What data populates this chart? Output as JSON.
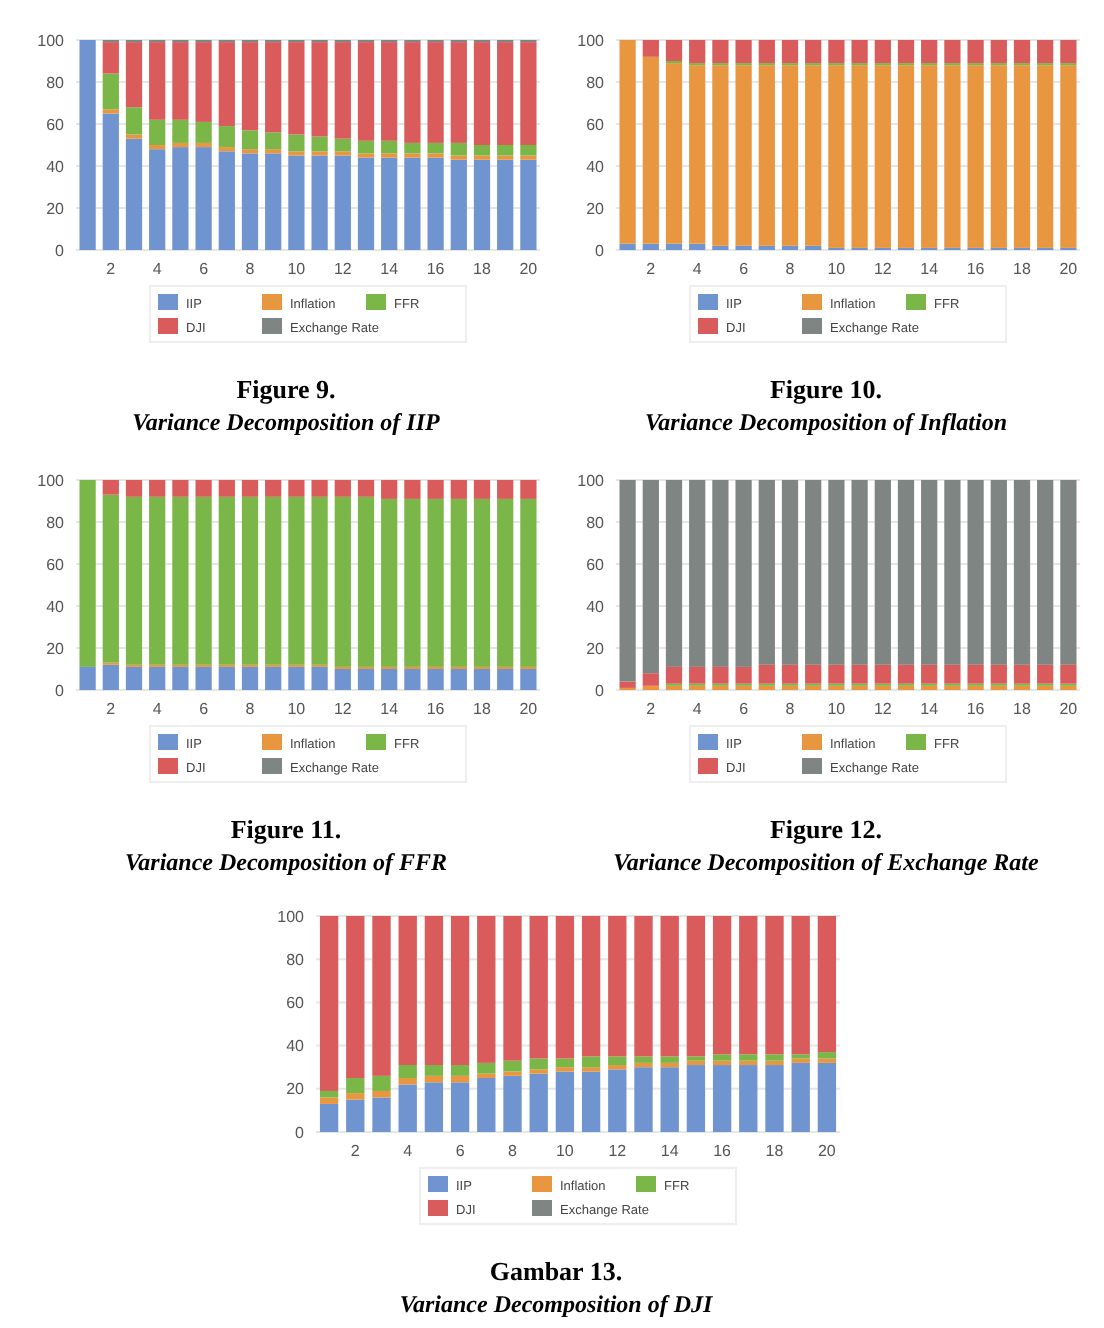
{
  "chart_data": [
    {
      "type": "bar",
      "stacked": true,
      "title": "Figure 9.",
      "subtitle": "Variance Decomposition of IIP",
      "categories": [
        null,
        "2",
        null,
        "4",
        null,
        "6",
        null,
        "8",
        null,
        "10",
        null,
        "12",
        null,
        "14",
        null,
        "16",
        null,
        "18",
        null,
        "20"
      ],
      "ylim": [
        0,
        100
      ],
      "yticks": [
        0,
        20,
        40,
        60,
        80,
        100
      ],
      "grid": "y",
      "legend": "bottom",
      "series": [
        {
          "name": "IIP",
          "color": "#6f94d0",
          "values": [
            100,
            65,
            53,
            48,
            49,
            49,
            47,
            46,
            46,
            45,
            45,
            45,
            44,
            44,
            44,
            44,
            43,
            43,
            43,
            43
          ]
        },
        {
          "name": "Inflation",
          "color": "#e8963f",
          "values": [
            0,
            2,
            2,
            2,
            2,
            2,
            2,
            2,
            2,
            2,
            2,
            2,
            2,
            2,
            2,
            2,
            2,
            2,
            2,
            2
          ]
        },
        {
          "name": "FFR",
          "color": "#7ab648",
          "values": [
            0,
            17,
            13,
            12,
            11,
            10,
            10,
            9,
            8,
            8,
            7,
            6,
            6,
            6,
            5,
            5,
            6,
            5,
            5,
            5
          ]
        },
        {
          "name": "DJI",
          "color": "#d95b5b",
          "values": [
            0,
            15,
            31,
            37,
            37,
            38,
            40,
            42,
            43,
            44,
            45,
            46,
            47,
            47,
            48,
            48,
            48,
            49,
            49,
            49
          ]
        },
        {
          "name": "Exchange Rate",
          "color": "#7f8582",
          "values": [
            0,
            1,
            1,
            1,
            1,
            1,
            1,
            1,
            1,
            1,
            1,
            1,
            1,
            1,
            1,
            1,
            1,
            1,
            1,
            1
          ]
        }
      ]
    },
    {
      "type": "bar",
      "stacked": true,
      "title": "Figure 10.",
      "subtitle": "Variance Decomposition of Inflation",
      "categories": [
        null,
        "2",
        null,
        "4",
        null,
        "6",
        null,
        "8",
        null,
        "10",
        null,
        "12",
        null,
        "14",
        null,
        "16",
        null,
        "18",
        null,
        "20"
      ],
      "ylim": [
        0,
        100
      ],
      "yticks": [
        0,
        20,
        40,
        60,
        80,
        100
      ],
      "grid": "y",
      "legend": "bottom",
      "series": [
        {
          "name": "IIP",
          "color": "#6f94d0",
          "values": [
            3,
            3,
            3,
            3,
            2,
            2,
            2,
            2,
            2,
            1,
            1,
            1,
            1,
            1,
            1,
            1,
            1,
            1,
            1,
            1
          ]
        },
        {
          "name": "Inflation",
          "color": "#e8963f",
          "values": [
            97,
            89,
            86,
            85,
            86,
            86,
            86,
            86,
            86,
            87,
            87,
            87,
            87,
            87,
            87,
            87,
            87,
            87,
            87,
            87
          ]
        },
        {
          "name": "FFR",
          "color": "#7ab648",
          "values": [
            0,
            0,
            1,
            1,
            1,
            1,
            1,
            1,
            1,
            1,
            1,
            1,
            1,
            1,
            1,
            1,
            1,
            1,
            1,
            1
          ]
        },
        {
          "name": "DJI",
          "color": "#d95b5b",
          "values": [
            0,
            8,
            10,
            11,
            11,
            11,
            11,
            11,
            11,
            11,
            11,
            11,
            11,
            11,
            11,
            11,
            11,
            11,
            11,
            11
          ]
        },
        {
          "name": "Exchange Rate",
          "color": "#7f8582",
          "values": [
            0,
            0,
            0,
            0,
            0,
            0,
            0,
            0,
            0,
            0,
            0,
            0,
            0,
            0,
            0,
            0,
            0,
            0,
            0,
            0
          ]
        }
      ]
    },
    {
      "type": "bar",
      "stacked": true,
      "title": "Figure 11.",
      "subtitle": "Variance Decomposition of FFR",
      "categories": [
        null,
        "2",
        null,
        "4",
        null,
        "6",
        null,
        "8",
        null,
        "10",
        null,
        "12",
        null,
        "14",
        null,
        "16",
        null,
        "18",
        null,
        "20"
      ],
      "ylim": [
        0,
        100
      ],
      "yticks": [
        0,
        20,
        40,
        60,
        80,
        100
      ],
      "grid": "y",
      "legend": "bottom",
      "series": [
        {
          "name": "IIP",
          "color": "#6f94d0",
          "values": [
            11,
            12,
            11,
            11,
            11,
            11,
            11,
            11,
            11,
            11,
            11,
            10,
            10,
            10,
            10,
            10,
            10,
            10,
            10,
            10
          ]
        },
        {
          "name": "Inflation",
          "color": "#e8963f",
          "values": [
            0,
            1,
            1,
            1,
            1,
            1,
            1,
            1,
            1,
            1,
            1,
            1,
            1,
            1,
            1,
            1,
            1,
            1,
            1,
            1
          ]
        },
        {
          "name": "FFR",
          "color": "#7ab648",
          "values": [
            89,
            80,
            80,
            80,
            80,
            80,
            80,
            80,
            80,
            80,
            80,
            81,
            81,
            80,
            80,
            80,
            80,
            80,
            80,
            80
          ]
        },
        {
          "name": "DJI",
          "color": "#d95b5b",
          "values": [
            0,
            7,
            8,
            8,
            8,
            8,
            8,
            8,
            8,
            8,
            8,
            8,
            8,
            9,
            9,
            9,
            9,
            9,
            9,
            9
          ]
        },
        {
          "name": "Exchange Rate",
          "color": "#7f8582",
          "values": [
            0,
            0,
            0,
            0,
            0,
            0,
            0,
            0,
            0,
            0,
            0,
            0,
            0,
            0,
            0,
            0,
            0,
            0,
            0,
            0
          ]
        }
      ]
    },
    {
      "type": "bar",
      "stacked": true,
      "title": "Figure 12.",
      "subtitle": "Variance Decomposition of Exchange Rate",
      "categories": [
        null,
        "2",
        null,
        "4",
        null,
        "6",
        null,
        "8",
        null,
        "10",
        null,
        "12",
        null,
        "14",
        null,
        "16",
        null,
        "18",
        null,
        "20"
      ],
      "ylim": [
        0,
        100
      ],
      "yticks": [
        0,
        20,
        40,
        60,
        80,
        100
      ],
      "grid": "y",
      "legend": "bottom",
      "series": [
        {
          "name": "IIP",
          "color": "#6f94d0",
          "values": [
            0,
            0,
            0,
            0,
            0,
            0,
            0,
            0,
            0,
            0,
            0,
            0,
            0,
            0,
            0,
            0,
            0,
            0,
            0,
            0
          ]
        },
        {
          "name": "Inflation",
          "color": "#e8963f",
          "values": [
            1,
            2,
            2,
            2,
            2,
            2,
            2,
            2,
            2,
            2,
            2,
            2,
            2,
            2,
            2,
            2,
            2,
            2,
            2,
            2
          ]
        },
        {
          "name": "FFR",
          "color": "#7ab648",
          "values": [
            0,
            0,
            1,
            1,
            1,
            1,
            1,
            1,
            1,
            1,
            1,
            1,
            1,
            1,
            1,
            1,
            1,
            1,
            1,
            1
          ]
        },
        {
          "name": "DJI",
          "color": "#d95b5b",
          "values": [
            3,
            6,
            8,
            8,
            8,
            8,
            9,
            9,
            9,
            9,
            9,
            9,
            9,
            9,
            9,
            9,
            9,
            9,
            9,
            9
          ]
        },
        {
          "name": "Exchange Rate",
          "color": "#7f8582",
          "values": [
            96,
            92,
            89,
            89,
            89,
            89,
            88,
            88,
            88,
            88,
            88,
            88,
            88,
            88,
            88,
            88,
            88,
            88,
            88,
            88
          ]
        }
      ]
    },
    {
      "type": "bar",
      "stacked": true,
      "title": "Gambar 13.",
      "subtitle": "Variance Decomposition of DJI",
      "categories": [
        null,
        "2",
        null,
        "4",
        null,
        "6",
        null,
        "8",
        null,
        "10",
        null,
        "12",
        null,
        "14",
        null,
        "16",
        null,
        "18",
        null,
        "20"
      ],
      "ylim": [
        0,
        100
      ],
      "yticks": [
        0,
        20,
        40,
        60,
        80,
        100
      ],
      "grid": "y",
      "legend": "bottom",
      "series": [
        {
          "name": "IIP",
          "color": "#6f94d0",
          "values": [
            13,
            15,
            16,
            22,
            23,
            23,
            25,
            26,
            27,
            28,
            28,
            29,
            30,
            30,
            31,
            31,
            31,
            31,
            32,
            32
          ]
        },
        {
          "name": "Inflation",
          "color": "#e8963f",
          "values": [
            3,
            3,
            3,
            3,
            3,
            3,
            2,
            2,
            2,
            2,
            2,
            2,
            2,
            2,
            2,
            2,
            2,
            2,
            2,
            2
          ]
        },
        {
          "name": "FFR",
          "color": "#7ab648",
          "values": [
            3,
            7,
            7,
            6,
            5,
            5,
            5,
            5,
            5,
            4,
            5,
            4,
            3,
            3,
            2,
            3,
            3,
            3,
            2,
            3
          ]
        },
        {
          "name": "DJI",
          "color": "#d95b5b",
          "values": [
            81,
            75,
            74,
            69,
            69,
            69,
            68,
            67,
            66,
            66,
            65,
            65,
            65,
            65,
            65,
            64,
            64,
            64,
            64,
            63
          ]
        },
        {
          "name": "Exchange Rate",
          "color": "#7f8582",
          "values": [
            0,
            0,
            0,
            0,
            0,
            0,
            0,
            0,
            0,
            0,
            0,
            0,
            0,
            0,
            0,
            0,
            0,
            0,
            0,
            0
          ]
        }
      ]
    }
  ]
}
